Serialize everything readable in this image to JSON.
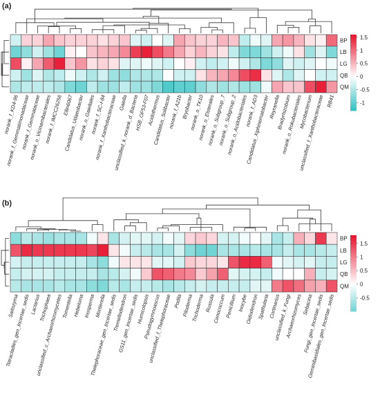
{
  "panel_a_label": "(a)",
  "panel_b_label": "(b)",
  "chart_data": [
    {
      "type": "heatmap",
      "panel": "(a)",
      "rows": [
        "BP",
        "LB",
        "LG",
        "QB",
        "QM"
      ],
      "columns": [
        "norank_f_KD4-96",
        "norank_f_Gemmatimonadaceae",
        "norank_f_Gemmataceae",
        "norank_o_Vicinamibacterales",
        "norank_f_IMCC26256",
        "Ellin6067",
        "Candidatus_Udaeobacter",
        "norank_o_Gaiellales",
        "norank_f_SC-I-84",
        "norank_f_Xanthobacteraceae",
        "Gaiella",
        "unclassified_k_norank_d_Bacteria",
        "HSB_OF53-F07",
        "Acidothermus",
        "Candidatus_Solibacter",
        "norank_f_A21b",
        "Bryobacter",
        "norank_o_TK10",
        "norank_o_Elsterales",
        "norank_o_Subgroup_7",
        "norank_o_Subgroup_2",
        "norank_o_Acidobacteriales",
        "norank_f_AD3",
        "Candidatus_Xiphinematobacter",
        "Reyranella",
        "Bradyrhizobium",
        "norank_o_Rokubacteriales",
        "Mycobacterium",
        "unclassified_f_Xanthobacteraceae",
        "RB41"
      ],
      "values": [
        [
          -0.3,
          0.3,
          0.3,
          0.6,
          0.4,
          0.3,
          0.3,
          0.3,
          0.2,
          0.3,
          0.4,
          -0.2,
          -0.3,
          0.0,
          -0.2,
          0.6,
          0.4,
          0.3,
          0.3,
          0.5,
          0.4,
          -0.4,
          -0.1,
          -0.2,
          0.6,
          0.7,
          0.5,
          0.2,
          0.1,
          1.0
        ],
        [
          -0.9,
          -0.7,
          -0.3,
          -0.6,
          -0.9,
          0.1,
          0.0,
          0.4,
          0.5,
          0.6,
          0.8,
          1.3,
          1.5,
          1.2,
          0.9,
          0.6,
          0.3,
          0.5,
          0.3,
          0.2,
          -0.4,
          -0.8,
          -0.8,
          -0.6,
          -0.3,
          -0.1,
          0.2,
          -0.6,
          -0.2,
          -0.8
        ],
        [
          1.2,
          0.1,
          0.6,
          1.1,
          1.5,
          0.4,
          0.7,
          0.2,
          0.3,
          0.2,
          -0.2,
          -0.2,
          -0.1,
          -0.2,
          -0.3,
          0.0,
          0.1,
          -0.3,
          -0.4,
          -0.3,
          -0.1,
          -0.3,
          -0.5,
          -0.8,
          -0.7,
          -0.2,
          -0.3,
          -0.2,
          0.0,
          -0.1
        ],
        [
          -0.3,
          -0.6,
          -0.2,
          -0.5,
          -0.4,
          -0.1,
          -0.3,
          -0.5,
          -0.3,
          -0.6,
          -0.7,
          -0.5,
          -0.5,
          -0.5,
          0.0,
          -0.3,
          -0.3,
          0.2,
          0.5,
          0.6,
          0.8,
          1.2,
          1.4,
          0.2,
          -0.2,
          -0.5,
          -0.2,
          0.0,
          -0.3,
          -0.3
        ],
        [
          -0.5,
          -0.4,
          -0.4,
          -0.4,
          -0.5,
          -0.8,
          -0.9,
          -0.4,
          -0.6,
          -0.6,
          -0.4,
          -0.6,
          -0.6,
          -0.8,
          -1.1,
          -1.0,
          -1.0,
          -0.7,
          -0.5,
          -0.6,
          -0.5,
          -0.6,
          -0.6,
          -0.1,
          0.6,
          0.4,
          0.4,
          1.2,
          1.5,
          0.7
        ]
      ],
      "colorbar_ticks": [
        "1.5",
        "1",
        "0.5",
        "0",
        "-0.5",
        "-1"
      ],
      "vmin": -1.3,
      "vmax": 1.6,
      "dendrogram": "columns clustered (tree above), rows clustered (tree at left)"
    },
    {
      "type": "heatmap",
      "panel": "(b)",
      "rows": [
        "BP",
        "LB",
        "LG",
        "QB",
        "QM"
      ],
      "columns": [
        "Saitozyma",
        "Tetracladies_gen_Incertae_sedis",
        "Lactarius",
        "Trichophaea",
        "unclassified_c_Archaeorhizomycetes",
        "Tomentella",
        "Hebeloma",
        "Inosperma",
        "Mortierella",
        "Thelephoraceae_gen_Incertae_sedis",
        "Tremellodendron",
        "GS11_gen_Incertae_sedis",
        "Humicolopsis",
        "Pseudogymnoascus",
        "unclassified_f_Thelephoraceae",
        "Podila",
        "Piloderma",
        "Trichoderma",
        "Russula",
        "Cenococcum",
        "Penicillium",
        "Inocybe",
        "Oidiodendron",
        "Spathularia",
        "Cortinarius",
        "unclassified_k_Fungi",
        "Archaeorhizomyces",
        "Sebacina",
        "Fungi_gen_Incertae_sedis",
        "Geminibasidiales_gen_Incertae_sedis"
      ],
      "values": [
        [
          -0.8,
          -0.5,
          -0.6,
          -0.7,
          -0.6,
          -0.6,
          -0.6,
          -0.1,
          0.2,
          -0.6,
          -0.3,
          -0.2,
          -0.2,
          -0.3,
          -0.1,
          -0.2,
          0.3,
          0.4,
          0.3,
          -0.3,
          -0.3,
          -0.1,
          0.0,
          -0.2,
          -0.6,
          -0.4,
          0.6,
          0.3,
          1.5,
          0.2
        ],
        [
          1.3,
          1.6,
          1.5,
          1.5,
          1.5,
          1.5,
          1.5,
          1.4,
          1.7,
          0.2,
          -0.1,
          -0.4,
          -0.5,
          -0.6,
          -0.6,
          -0.3,
          -0.8,
          -1.0,
          -1.0,
          -0.6,
          -0.6,
          -0.6,
          -0.5,
          -0.6,
          -0.6,
          -0.4,
          -0.6,
          -0.6,
          -0.5,
          -0.4
        ],
        [
          -0.3,
          -0.4,
          -0.4,
          -0.4,
          -0.4,
          -0.4,
          -0.4,
          -0.6,
          -0.8,
          -0.1,
          0.2,
          0.2,
          0.2,
          -0.2,
          -0.2,
          -0.3,
          0.4,
          0.3,
          0.3,
          0.2,
          1.3,
          1.6,
          1.6,
          1.2,
          -0.1,
          -0.2,
          -0.3,
          -0.2,
          -0.4,
          -0.4
        ],
        [
          -0.4,
          -0.3,
          -0.3,
          -0.3,
          -0.4,
          -0.4,
          -0.4,
          -0.4,
          -0.6,
          -0.5,
          -0.3,
          -0.1,
          0.4,
          1.3,
          1.2,
          1.0,
          0.9,
          0.4,
          0.7,
          1.2,
          -0.2,
          -0.3,
          -0.3,
          -0.4,
          -0.1,
          0.0,
          0.0,
          0.6,
          -0.4,
          -0.3
        ],
        [
          -0.5,
          -0.6,
          -0.6,
          -0.6,
          -0.5,
          -0.6,
          -0.6,
          -0.8,
          -0.9,
          -0.5,
          -0.6,
          -0.4,
          -0.4,
          -0.5,
          -0.6,
          -0.5,
          -0.4,
          -0.3,
          -0.4,
          -0.4,
          -0.4,
          -0.4,
          -0.2,
          -0.2,
          1.0,
          1.3,
          1.1,
          0.7,
          0.6,
          1.3
        ]
      ],
      "colorbar_ticks": [
        "1.5",
        "1",
        "0.5",
        "0",
        "-0.5"
      ],
      "vmin": -1.0,
      "vmax": 1.8,
      "dendrogram": "columns clustered (tree above), rows clustered (tree at left)"
    }
  ],
  "colors": {
    "low": "#00b2b2",
    "mid": "#ffffff",
    "high": "#e8112d",
    "grid": "#3a3a3a",
    "tree": "#333333"
  }
}
